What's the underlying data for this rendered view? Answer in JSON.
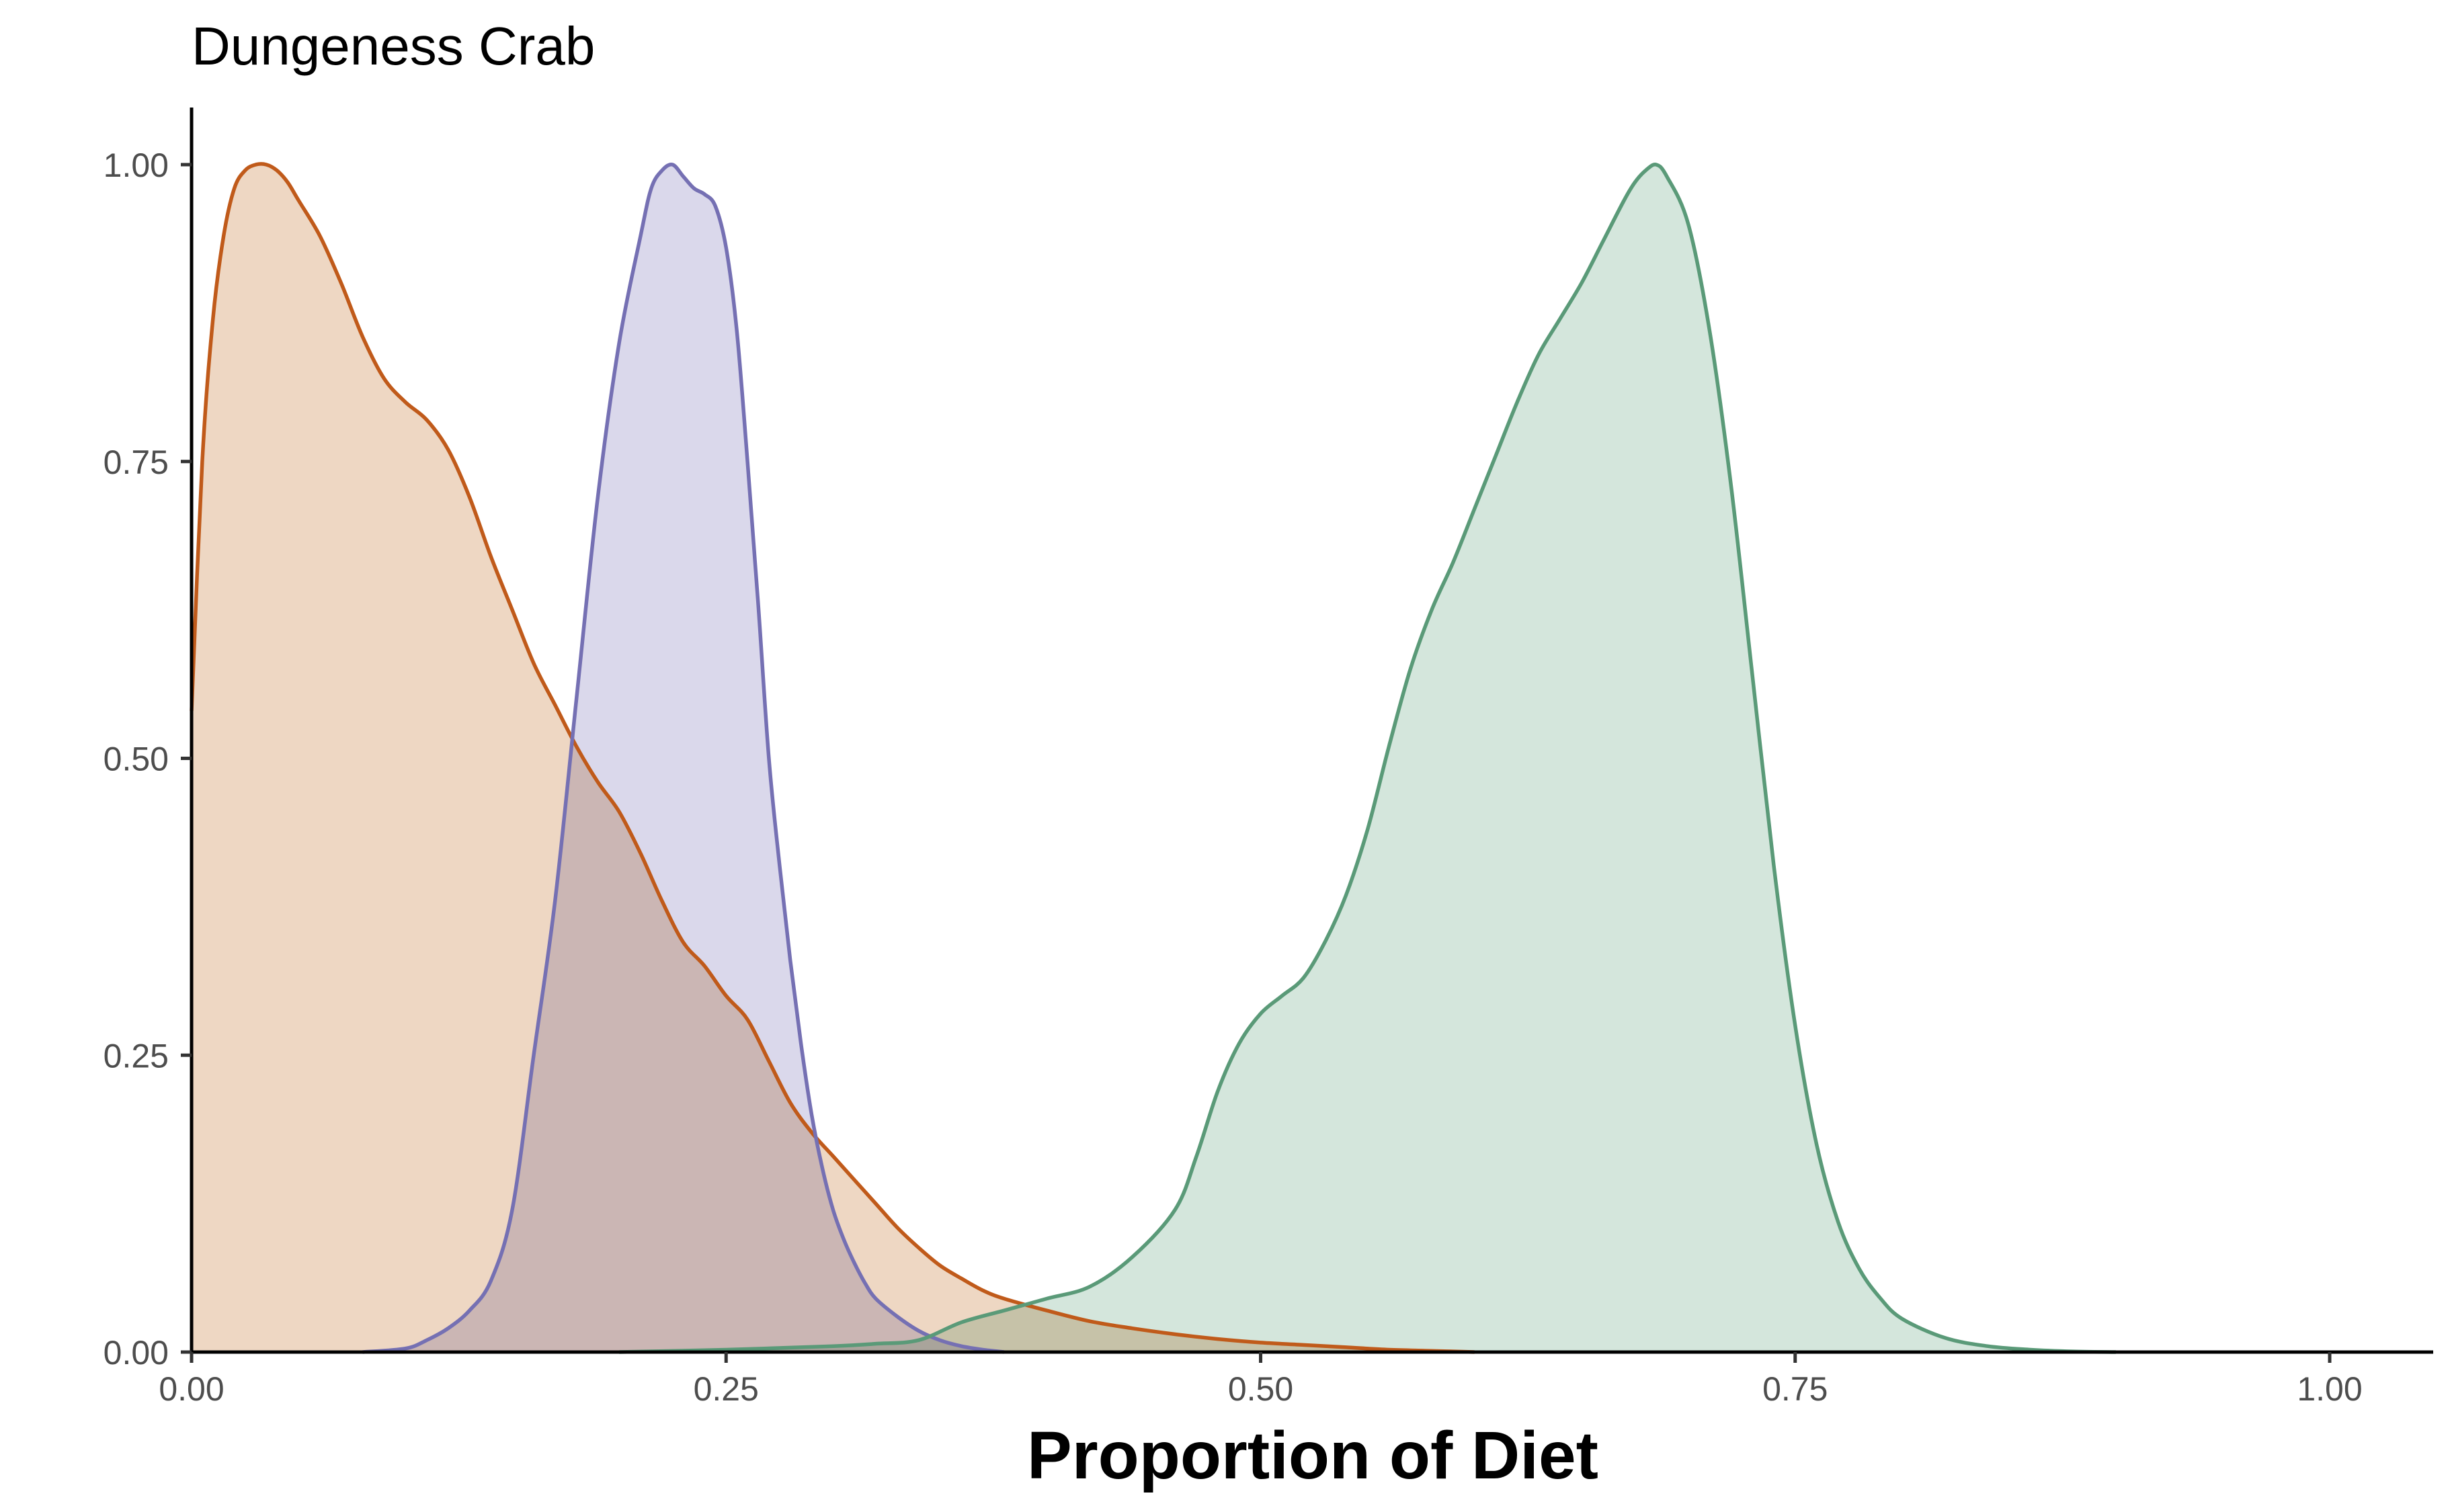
{
  "chart_data": {
    "type": "area",
    "title": "Dungeness Crab",
    "xlabel": "Proportion of Diet",
    "ylabel": "",
    "xlim": [
      0,
      1.05
    ],
    "ylim": [
      0,
      1.05
    ],
    "x_ticks": [
      0,
      0.25,
      0.5,
      0.75,
      1.0
    ],
    "x_tick_labels": [
      "0.00",
      "0.25",
      "0.50",
      "0.75",
      "1.00"
    ],
    "y_ticks": [
      0,
      0.25,
      0.5,
      0.75,
      1.0
    ],
    "y_tick_labels": [
      "0.00",
      "0.25",
      "0.50",
      "0.75",
      "1.00"
    ],
    "grid": false,
    "legend": "none",
    "series": [
      {
        "color": "#c05a1a",
        "fill": "#ebd0b8",
        "x": [
          0,
          0.005,
          0.01,
          0.015,
          0.02,
          0.025,
          0.03,
          0.035,
          0.04,
          0.045,
          0.05,
          0.06,
          0.07,
          0.08,
          0.09,
          0.1,
          0.11,
          0.12,
          0.13,
          0.14,
          0.15,
          0.16,
          0.17,
          0.18,
          0.19,
          0.2,
          0.21,
          0.22,
          0.23,
          0.24,
          0.25,
          0.26,
          0.27,
          0.28,
          0.29,
          0.3,
          0.31,
          0.32,
          0.33,
          0.34,
          0.35,
          0.36,
          0.37,
          0.38,
          0.4,
          0.42,
          0.44,
          0.46,
          0.48,
          0.5,
          0.52,
          0.54,
          0.56,
          0.58,
          0.6
        ],
        "y": [
          0.54,
          0.75,
          0.87,
          0.94,
          0.98,
          0.995,
          1.0,
          1.0,
          0.995,
          0.985,
          0.97,
          0.94,
          0.9,
          0.855,
          0.82,
          0.8,
          0.785,
          0.76,
          0.72,
          0.67,
          0.625,
          0.58,
          0.545,
          0.51,
          0.48,
          0.455,
          0.42,
          0.38,
          0.345,
          0.325,
          0.3,
          0.28,
          0.245,
          0.21,
          0.185,
          0.165,
          0.145,
          0.125,
          0.105,
          0.088,
          0.073,
          0.062,
          0.052,
          0.045,
          0.035,
          0.026,
          0.02,
          0.015,
          0.011,
          0.008,
          0.006,
          0.004,
          0.002,
          0.001,
          0.0
        ]
      },
      {
        "color": "#7570b3",
        "fill": "#d4d1e7",
        "x": [
          0.08,
          0.1,
          0.11,
          0.12,
          0.13,
          0.14,
          0.15,
          0.16,
          0.17,
          0.18,
          0.19,
          0.2,
          0.21,
          0.215,
          0.22,
          0.225,
          0.23,
          0.235,
          0.24,
          0.245,
          0.25,
          0.255,
          0.26,
          0.265,
          0.27,
          0.275,
          0.28,
          0.285,
          0.29,
          0.295,
          0.3,
          0.305,
          0.31,
          0.315,
          0.32,
          0.33,
          0.34,
          0.35,
          0.36,
          0.37,
          0.38
        ],
        "y": [
          0.0,
          0.003,
          0.01,
          0.02,
          0.035,
          0.06,
          0.12,
          0.25,
          0.38,
          0.55,
          0.72,
          0.85,
          0.94,
          0.98,
          0.995,
          1.0,
          0.99,
          0.98,
          0.975,
          0.965,
          0.93,
          0.86,
          0.75,
          0.63,
          0.5,
          0.41,
          0.33,
          0.26,
          0.2,
          0.155,
          0.12,
          0.095,
          0.075,
          0.058,
          0.045,
          0.03,
          0.018,
          0.01,
          0.005,
          0.002,
          0.0
        ]
      },
      {
        "color": "#5a9a78",
        "fill": "#cde2d6",
        "x": [
          0.2,
          0.25,
          0.3,
          0.32,
          0.34,
          0.36,
          0.38,
          0.4,
          0.42,
          0.44,
          0.46,
          0.47,
          0.48,
          0.49,
          0.5,
          0.51,
          0.52,
          0.53,
          0.54,
          0.55,
          0.56,
          0.57,
          0.58,
          0.59,
          0.6,
          0.61,
          0.62,
          0.63,
          0.64,
          0.65,
          0.66,
          0.67,
          0.675,
          0.68,
          0.685,
          0.69,
          0.7,
          0.71,
          0.72,
          0.73,
          0.74,
          0.75,
          0.76,
          0.77,
          0.78,
          0.79,
          0.8,
          0.82,
          0.84,
          0.86,
          0.88,
          0.9
        ],
        "y": [
          0.0,
          0.002,
          0.005,
          0.007,
          0.01,
          0.025,
          0.035,
          0.045,
          0.055,
          0.08,
          0.12,
          0.165,
          0.22,
          0.26,
          0.285,
          0.3,
          0.315,
          0.345,
          0.385,
          0.44,
          0.51,
          0.575,
          0.625,
          0.665,
          0.71,
          0.755,
          0.8,
          0.84,
          0.87,
          0.9,
          0.935,
          0.97,
          0.985,
          0.995,
          1.0,
          0.99,
          0.95,
          0.86,
          0.73,
          0.57,
          0.41,
          0.275,
          0.175,
          0.11,
          0.07,
          0.045,
          0.028,
          0.012,
          0.005,
          0.002,
          0.0005,
          0.0
        ]
      }
    ]
  }
}
